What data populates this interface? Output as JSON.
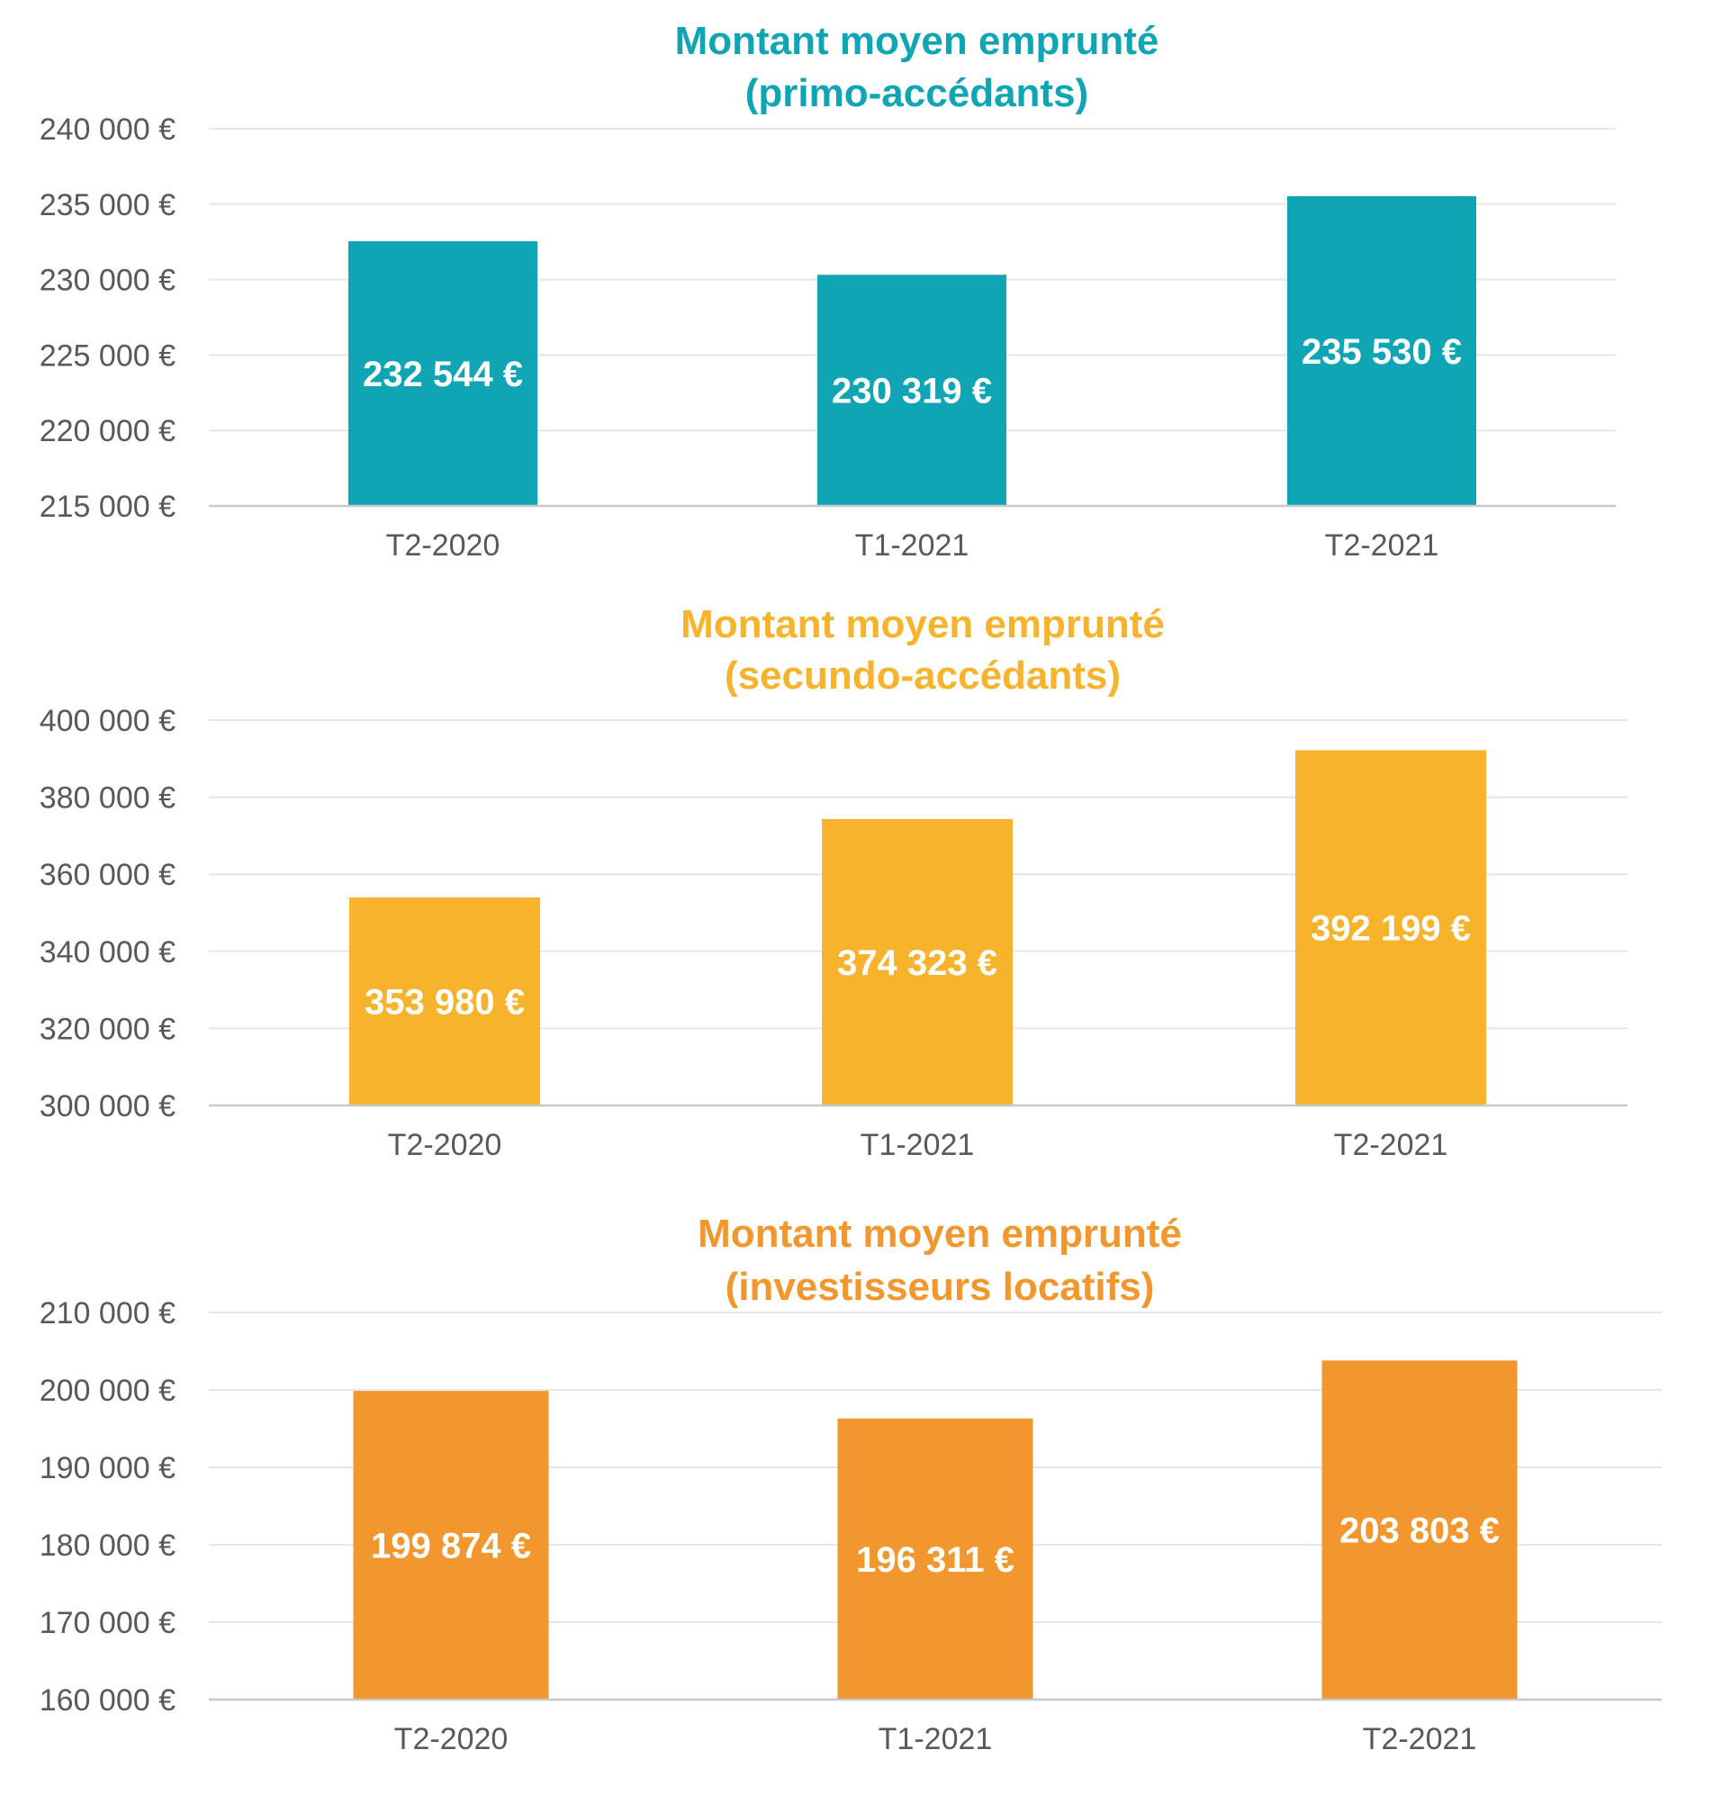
{
  "chart_data": [
    {
      "type": "bar",
      "title": [
        "Montant moyen emprunté",
        "(primo-accédants)"
      ],
      "color": "#0fa5b5",
      "categories": [
        "T2-2020",
        "T1-2021",
        "T2-2021"
      ],
      "values": [
        232544,
        230319,
        235530
      ],
      "data_labels": [
        "232 544 €",
        "230 319 €",
        "235 530 €"
      ],
      "ylim": [
        215000,
        240000
      ],
      "yticks": [
        215000,
        220000,
        225000,
        230000,
        235000,
        240000
      ],
      "ytick_labels": [
        "215 000 €",
        "220 000 €",
        "225 000 €",
        "230 000 €",
        "235 000 €",
        "240 000 €"
      ],
      "grid": true
    },
    {
      "type": "bar",
      "title": [
        "Montant moyen emprunté",
        "(secundo-accédants)"
      ],
      "color": "#f7b32b",
      "categories": [
        "T2-2020",
        "T1-2021",
        "T2-2021"
      ],
      "values": [
        353980,
        374323,
        392199
      ],
      "data_labels": [
        "353 980 €",
        "374 323 €",
        "392 199 €"
      ],
      "ylim": [
        300000,
        400000
      ],
      "yticks": [
        300000,
        320000,
        340000,
        360000,
        380000,
        400000
      ],
      "ytick_labels": [
        "300 000 €",
        "320 000 €",
        "340 000 €",
        "360 000 €",
        "380 000 €",
        "400 000 €"
      ],
      "grid": true
    },
    {
      "type": "bar",
      "title": [
        "Montant moyen emprunté",
        "(investisseurs locatifs)"
      ],
      "color": "#f2962e",
      "categories": [
        "T2-2020",
        "T1-2021",
        "T2-2021"
      ],
      "values": [
        199874,
        196311,
        203803
      ],
      "data_labels": [
        "199 874 €",
        "196 311 €",
        "203 803 €"
      ],
      "ylim": [
        160000,
        210000
      ],
      "yticks": [
        160000,
        170000,
        180000,
        190000,
        200000,
        210000
      ],
      "ytick_labels": [
        "160 000 €",
        "170 000 €",
        "180 000 €",
        "190 000 €",
        "200 000 €",
        "210 000 €"
      ],
      "grid": true
    }
  ]
}
